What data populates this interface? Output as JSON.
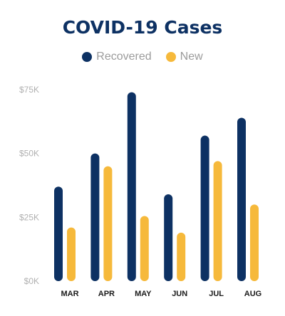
{
  "chart_data": {
    "type": "bar",
    "title": "COVID-19 Cases",
    "categories": [
      "MAR",
      "APR",
      "MAY",
      "JUN",
      "JUL",
      "AUG"
    ],
    "series": [
      {
        "name": "Recovered",
        "color": "#0d3163",
        "values": [
          37000,
          50000,
          74000,
          34000,
          57000,
          64000
        ]
      },
      {
        "name": "New",
        "color": "#f6b93b",
        "values": [
          21000,
          45000,
          25500,
          19000,
          47000,
          30000
        ]
      }
    ],
    "ylim": [
      0,
      75000
    ],
    "yticks": [
      {
        "value": 0,
        "label": "$0K"
      },
      {
        "value": 25000,
        "label": "$25K"
      },
      {
        "value": 50000,
        "label": "$50K"
      },
      {
        "value": 75000,
        "label": "$75K"
      }
    ],
    "legend_position": "top-center",
    "grid": false
  }
}
